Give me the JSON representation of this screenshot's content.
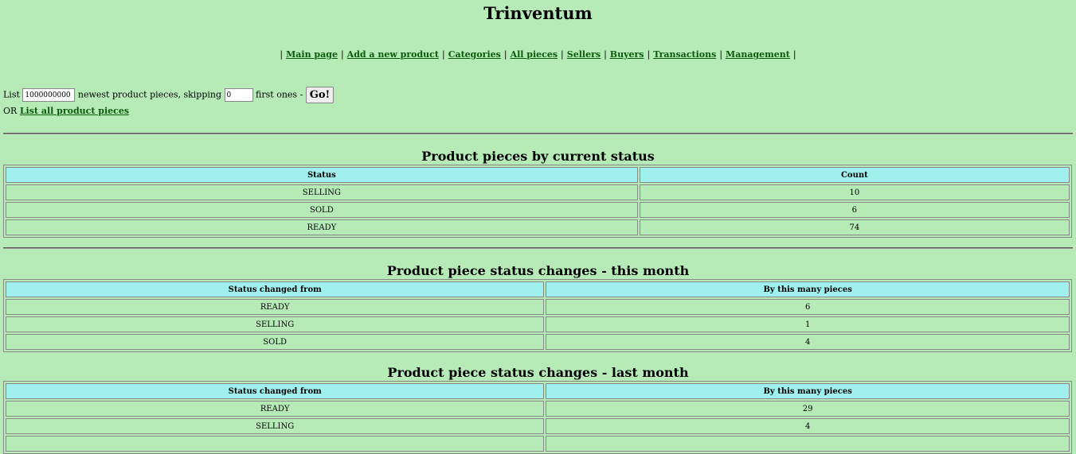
{
  "title": "Trinventum",
  "nav": [
    "Main page",
    "Add a new product",
    "Categories",
    "All pieces",
    "Sellers",
    "Buyers",
    "Transactions",
    "Management"
  ],
  "form": {
    "list_label": "List",
    "count_value": "1000000000",
    "middle_text": "newest product pieces, skipping",
    "skip_value": "0",
    "end_text": "first ones -",
    "go_label": "Go!",
    "or_label": "OR",
    "list_all_label": "List all product pieces"
  },
  "tables": [
    {
      "title": "Product pieces by current status",
      "headers": [
        "Status",
        "Count"
      ],
      "rows": [
        [
          "SELLING",
          "10"
        ],
        [
          "SOLD",
          "6"
        ],
        [
          "READY",
          "74"
        ]
      ]
    },
    {
      "title": "Product piece status changes - this month",
      "headers": [
        "Status changed from",
        "By this many pieces"
      ],
      "rows": [
        [
          "READY",
          "6"
        ],
        [
          "SELLING",
          "1"
        ],
        [
          "SOLD",
          "4"
        ]
      ]
    },
    {
      "title": "Product piece status changes - last month",
      "headers": [
        "Status changed from",
        "By this many pieces"
      ],
      "rows": [
        [
          "READY",
          "29"
        ],
        [
          "SELLING",
          "4"
        ],
        [
          "",
          ""
        ]
      ]
    }
  ]
}
